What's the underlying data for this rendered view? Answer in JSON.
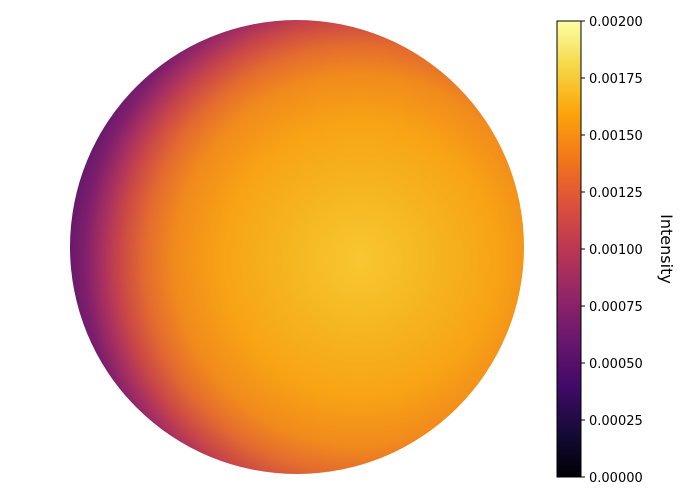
{
  "chart_data": {
    "type": "heatmap",
    "title": "",
    "xlabel": "",
    "ylabel": "",
    "description_kind": "disk intensity map (limb-darkened stellar disk), no axes shown",
    "colormap": "inferno",
    "grid": false,
    "axes_visible": false,
    "colorbar": {
      "label": "Intensity",
      "vmin": 0.0,
      "vmax": 0.002,
      "ticks": [
        0.0,
        0.00025,
        0.0005,
        0.00075,
        0.001,
        0.00125,
        0.0015,
        0.00175,
        0.002
      ],
      "tick_labels": [
        "0.00000",
        "0.00025",
        "0.00050",
        "0.00075",
        "0.00100",
        "0.00125",
        "0.00150",
        "0.00175",
        "0.00200"
      ],
      "orientation": "vertical",
      "placement": "right"
    },
    "disk": {
      "center_intensity": 0.00175,
      "limb_intensity": 0.0008,
      "brightest_region": "center-right"
    }
  }
}
